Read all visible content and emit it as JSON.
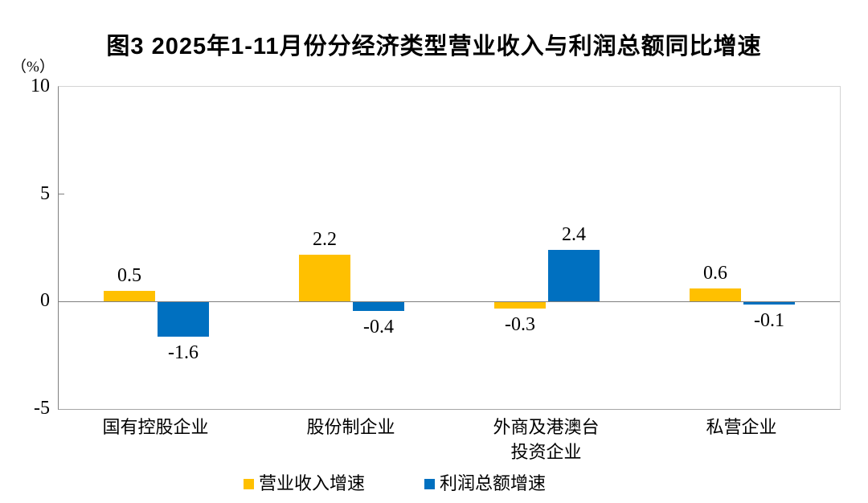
{
  "chart_data": {
    "type": "bar",
    "title": "图3  2025年1-11月份分经济类型营业收入与利润总额同比增速",
    "unit_label": "（%）",
    "categories": [
      "国有控股企业",
      "股份制企业",
      "外商及港澳台\n投资企业",
      "私营企业"
    ],
    "series": [
      {
        "name": "营业收入增速",
        "color": "#FFC000",
        "values": [
          0.5,
          2.2,
          -0.3,
          0.6
        ]
      },
      {
        "name": "利润总额增速",
        "color": "#0070C0",
        "values": [
          -1.6,
          -0.4,
          2.4,
          -0.1
        ]
      }
    ],
    "ylim": [
      -5,
      10
    ],
    "yticks": [
      10,
      5,
      0,
      -5
    ],
    "grid": false,
    "value_labels": true,
    "legend_position": "bottom",
    "axis_color": "#7f7f7f",
    "box_color": "#d4d4d4"
  }
}
